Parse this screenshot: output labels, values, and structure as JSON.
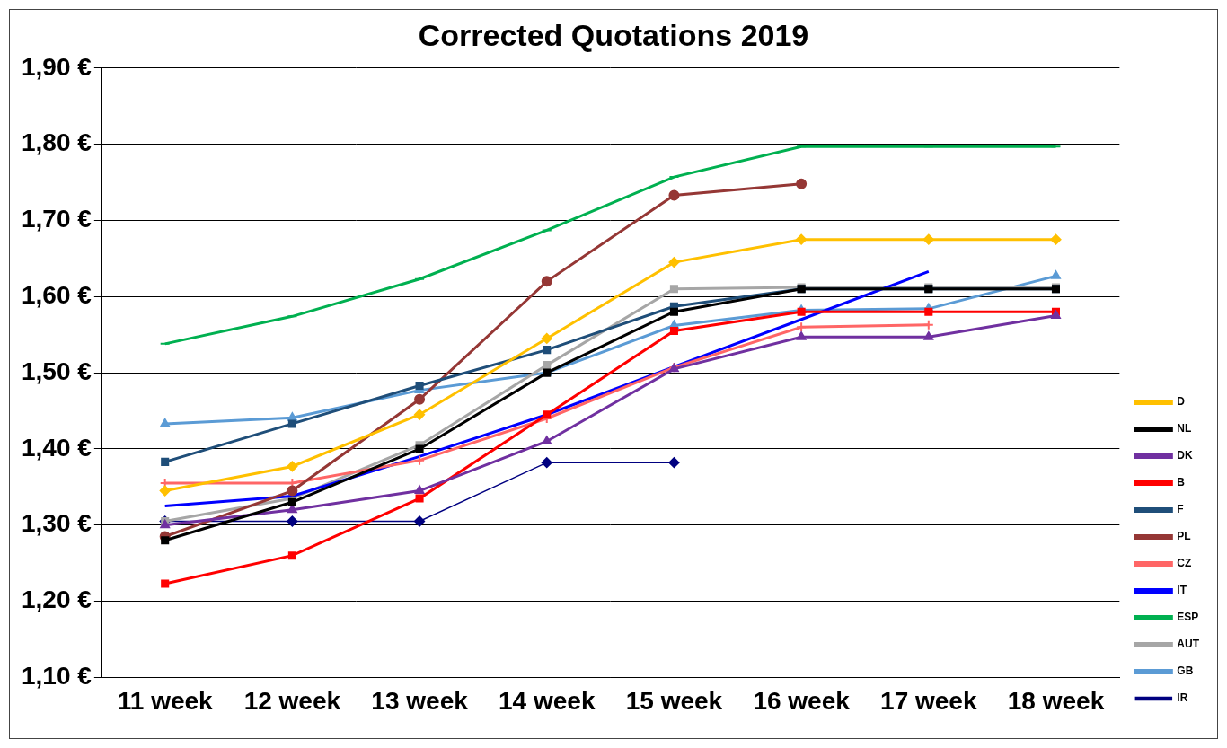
{
  "chart_data": {
    "type": "line",
    "title": "Corrected Quotations 2019",
    "categories": [
      "11 week",
      "12 week",
      "13 week",
      "14 week",
      "15 week",
      "16 week",
      "17 week",
      "18 week"
    ],
    "series": [
      {
        "name": "D",
        "color": "#ffc000",
        "marker": "diamond",
        "values": [
          1.345,
          1.377,
          1.445,
          1.545,
          1.645,
          1.675,
          1.675,
          1.675
        ]
      },
      {
        "name": "NL",
        "color": "#000000",
        "marker": "square",
        "values": [
          1.28,
          1.33,
          1.4,
          1.5,
          1.58,
          1.61,
          1.61,
          1.61
        ]
      },
      {
        "name": "DK",
        "color": "#7030a0",
        "marker": "triangle",
        "values": [
          1.3,
          1.32,
          1.345,
          1.41,
          1.505,
          1.547,
          1.547,
          1.575
        ]
      },
      {
        "name": "B",
        "color": "#ff0000",
        "marker": "square",
        "values": [
          1.223,
          1.26,
          1.335,
          1.445,
          1.555,
          1.58,
          1.58,
          1.58
        ]
      },
      {
        "name": "F",
        "color": "#1f4e79",
        "marker": "square",
        "values": [
          1.383,
          1.433,
          1.483,
          1.53,
          1.587,
          1.61,
          1.61,
          1.61
        ]
      },
      {
        "name": "PL",
        "color": "#953735",
        "marker": "circle",
        "values": [
          1.285,
          1.345,
          1.465,
          1.62,
          1.733,
          1.748,
          null,
          null
        ]
      },
      {
        "name": "CZ",
        "color": "#ff6666",
        "marker": "plus",
        "values": [
          1.355,
          1.355,
          1.385,
          1.44,
          1.507,
          1.56,
          1.563,
          null
        ]
      },
      {
        "name": "IT",
        "color": "#0000ff",
        "marker": "none",
        "values": [
          1.325,
          1.338,
          1.39,
          1.445,
          1.508,
          1.57,
          1.633,
          null
        ]
      },
      {
        "name": "ESP",
        "color": "#00b050",
        "marker": "line",
        "values": [
          1.538,
          1.574,
          1.623,
          1.687,
          1.757,
          1.797,
          1.797,
          1.797
        ]
      },
      {
        "name": "AUT",
        "color": "#a6a6a6",
        "marker": "square",
        "values": [
          1.305,
          1.335,
          1.405,
          1.51,
          1.61,
          1.612,
          1.612,
          1.612
        ]
      },
      {
        "name": "GB",
        "color": "#5b9bd5",
        "marker": "triangle",
        "values": [
          1.433,
          1.441,
          1.477,
          1.5,
          1.562,
          1.582,
          1.584,
          1.627
        ]
      },
      {
        "name": "IR",
        "color": "#000080",
        "marker": "diamond",
        "values": [
          1.305,
          1.305,
          1.305,
          1.382,
          1.382,
          null,
          null,
          null
        ]
      }
    ],
    "ylim": [
      1.1,
      1.9
    ],
    "yticks": [
      {
        "value": 1.1,
        "label": "1,10 €"
      },
      {
        "value": 1.2,
        "label": "1,20 €"
      },
      {
        "value": 1.3,
        "label": "1,30 €"
      },
      {
        "value": 1.4,
        "label": "1,40 €"
      },
      {
        "value": 1.5,
        "label": "1,50 €"
      },
      {
        "value": 1.6,
        "label": "1,60 €"
      },
      {
        "value": 1.7,
        "label": "1,70 €"
      },
      {
        "value": 1.8,
        "label": "1,80 €"
      },
      {
        "value": 1.9,
        "label": "1,90 €"
      }
    ],
    "grid": true,
    "legend": "right"
  }
}
